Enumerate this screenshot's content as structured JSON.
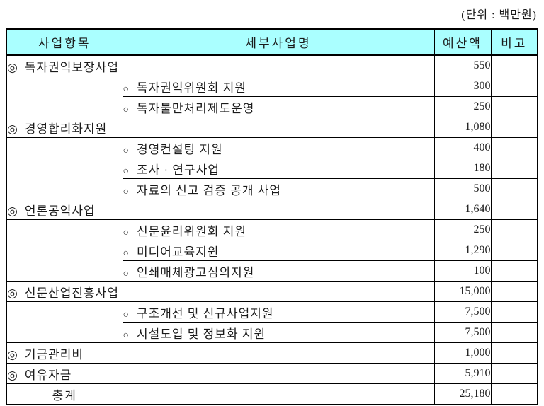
{
  "page": {
    "unit_label": "(단위 : 백만원)"
  },
  "table": {
    "headers": [
      "사업항목",
      "세부사업명",
      "예산액",
      "비고"
    ],
    "section_bullet": "◎",
    "item_bullet": "○",
    "header_bg": "#aaffff",
    "sections": [
      {
        "title": "독자권익보장사업",
        "budget": "550",
        "remark": "",
        "items": [
          {
            "name": "독자권익위원회 지원",
            "budget": "300",
            "remark": ""
          },
          {
            "name": "독자불만처리제도운영",
            "budget": "250",
            "remark": ""
          }
        ]
      },
      {
        "title": "경영합리화지원",
        "budget": "1,080",
        "remark": "",
        "items": [
          {
            "name": "경영컨설팅 지원",
            "budget": "400",
            "remark": ""
          },
          {
            "name": "조사 · 연구사업",
            "budget": "180",
            "remark": ""
          },
          {
            "name": "자료의 신고 검증 공개 사업",
            "budget": "500",
            "remark": ""
          }
        ]
      },
      {
        "title": "언론공익사업",
        "budget": "1,640",
        "remark": "",
        "items": [
          {
            "name": "신문윤리위원회 지원",
            "budget": "250",
            "remark": ""
          },
          {
            "name": "미디어교육지원",
            "budget": "1,290",
            "remark": ""
          },
          {
            "name": "인쇄매체광고심의지원",
            "budget": "100",
            "remark": ""
          }
        ]
      },
      {
        "title": "신문산업진흥사업",
        "budget": "15,000",
        "remark": "",
        "items": [
          {
            "name": "구조개선 및 신규사업지원",
            "budget": "7,500",
            "remark": ""
          },
          {
            "name": "시설도입 및 정보화 지원",
            "budget": "7,500",
            "remark": ""
          }
        ]
      },
      {
        "title": "기금관리비",
        "budget": "1,000",
        "remark": "",
        "items": []
      },
      {
        "title": "여유자금",
        "budget": "5,910",
        "remark": "",
        "items": []
      }
    ],
    "total": {
      "label": "총계",
      "budget": "25,180",
      "remark": ""
    }
  }
}
